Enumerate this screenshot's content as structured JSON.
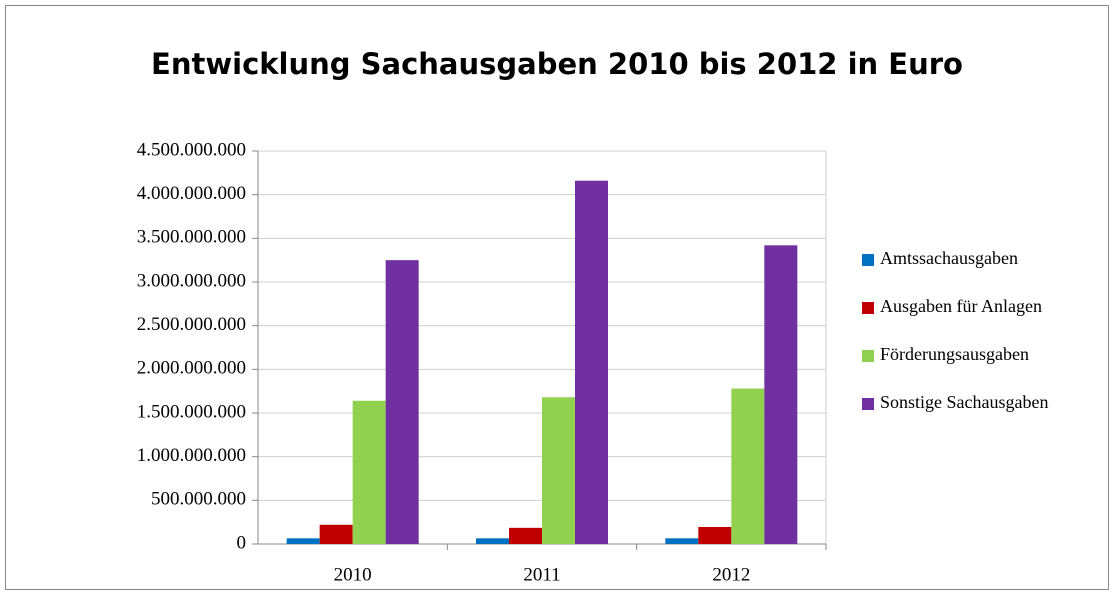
{
  "chart_data": {
    "type": "bar",
    "title": "Entwicklung Sachausgaben 2010 bis 2012 in Euro",
    "categories": [
      "2010",
      "2011",
      "2012"
    ],
    "series": [
      {
        "name": "Amtssachausgaben",
        "color": "#0070c0",
        "values": [
          65000000,
          65000000,
          65000000
        ]
      },
      {
        "name": "Ausgaben für Anlagen",
        "color": "#c00000",
        "values": [
          220000000,
          185000000,
          195000000
        ]
      },
      {
        "name": "Förderungsausgaben",
        "color": "#92d050",
        "values": [
          1640000000,
          1680000000,
          1780000000
        ]
      },
      {
        "name": "Sonstige Sachausgaben",
        "color": "#7030a0",
        "values": [
          3250000000,
          4160000000,
          3420000000
        ]
      }
    ],
    "ylim": [
      0,
      4500000000
    ],
    "yticks": [
      0,
      {
        "value": 500000000,
        "label": "500.000.000"
      },
      {
        "value": 1000000000,
        "label": "1.000.000.000"
      },
      {
        "value": 1500000000,
        "label": "1.500.000.000"
      },
      {
        "value": 2000000000,
        "label": "2.000.000.000"
      },
      {
        "value": 2500000000,
        "label": "2.500.000.000"
      },
      {
        "value": 3000000000,
        "label": "3.000.000.000"
      },
      {
        "value": 3500000000,
        "label": "3.500.000.000"
      },
      {
        "value": 4000000000,
        "label": "4.000.000.000"
      },
      {
        "value": 4500000000,
        "label": "4.500.000.000"
      }
    ],
    "grid": true,
    "legend": "right"
  }
}
